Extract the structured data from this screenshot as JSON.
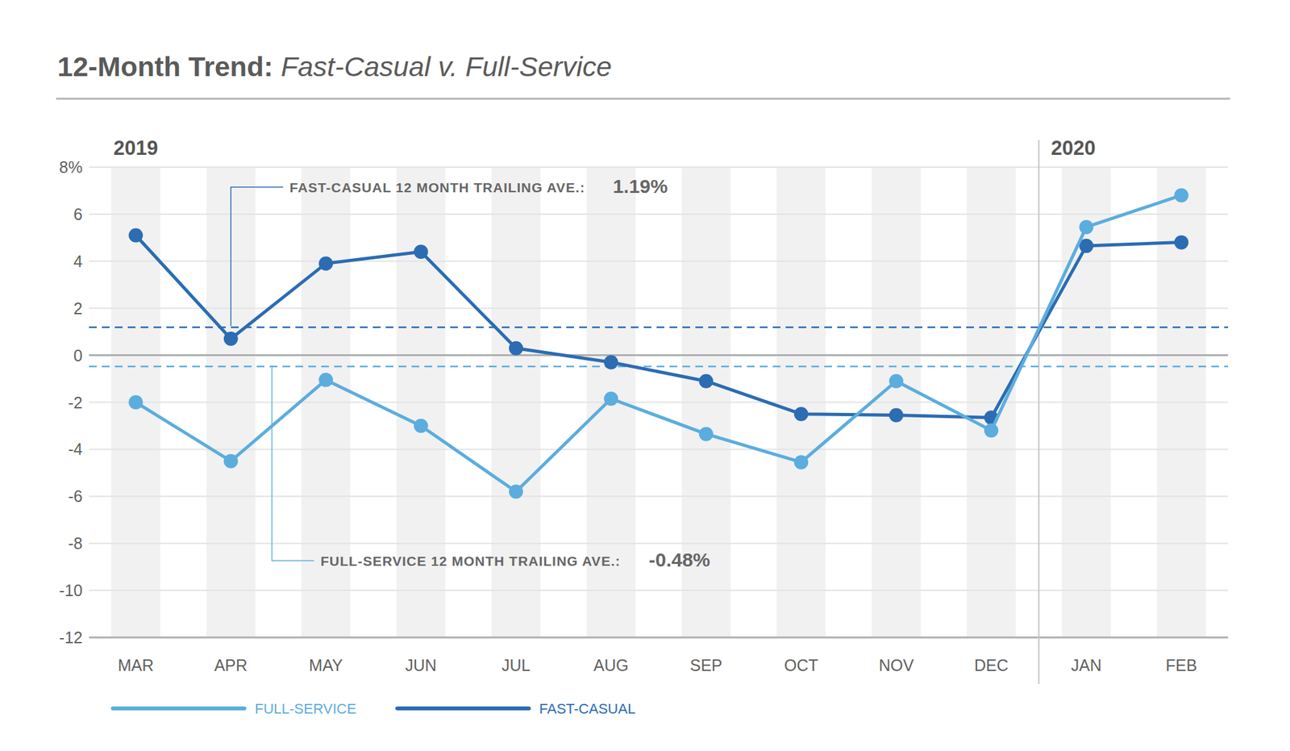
{
  "chart_data": {
    "type": "line",
    "title": "12-Month Trend:",
    "subtitle": "Fast-Casual v. Full-Service",
    "categories": [
      "MAR",
      "APR",
      "MAY",
      "JUN",
      "JUL",
      "AUG",
      "SEP",
      "OCT",
      "NOV",
      "DEC",
      "JAN",
      "FEB"
    ],
    "periods": [
      {
        "label": "2019",
        "start": "MAR"
      },
      {
        "label": "2020",
        "start": "JAN"
      }
    ],
    "series": [
      {
        "name": "FAST-CASUAL",
        "color": "#2b6cb3",
        "marker": "circle",
        "line_style": "solid",
        "values": [
          5.1,
          0.7,
          3.9,
          4.4,
          0.3,
          -0.3,
          -1.1,
          -2.5,
          -2.55,
          -2.65,
          4.65,
          4.8
        ]
      },
      {
        "name": "FULL-SERVICE",
        "color": "#5badde",
        "marker": "circle",
        "line_style": "solid",
        "values": [
          -2.0,
          -4.5,
          -1.05,
          -3.0,
          -5.8,
          -1.85,
          -3.35,
          -4.55,
          -1.1,
          -3.2,
          5.45,
          6.8
        ]
      }
    ],
    "reference_lines": [
      {
        "label": "FAST-CASUAL 12 MONTH TRAILING AVE.:",
        "value": 1.19,
        "value_label": "1.19%",
        "color": "#2b6cb3",
        "line_style": "dashed"
      },
      {
        "label": "FULL-SERVICE 12 MONTH TRAILING AVE.:",
        "value": -0.48,
        "value_label": "-0.48%",
        "color": "#5badde",
        "line_style": "dashed"
      }
    ],
    "ylim": [
      -12,
      8
    ],
    "yticks": [
      {
        "value": 8,
        "label": "8%"
      },
      6,
      4,
      2,
      0,
      -2,
      -4,
      -6,
      -8,
      -10,
      -12
    ],
    "grid": true,
    "legend": "bottom"
  }
}
